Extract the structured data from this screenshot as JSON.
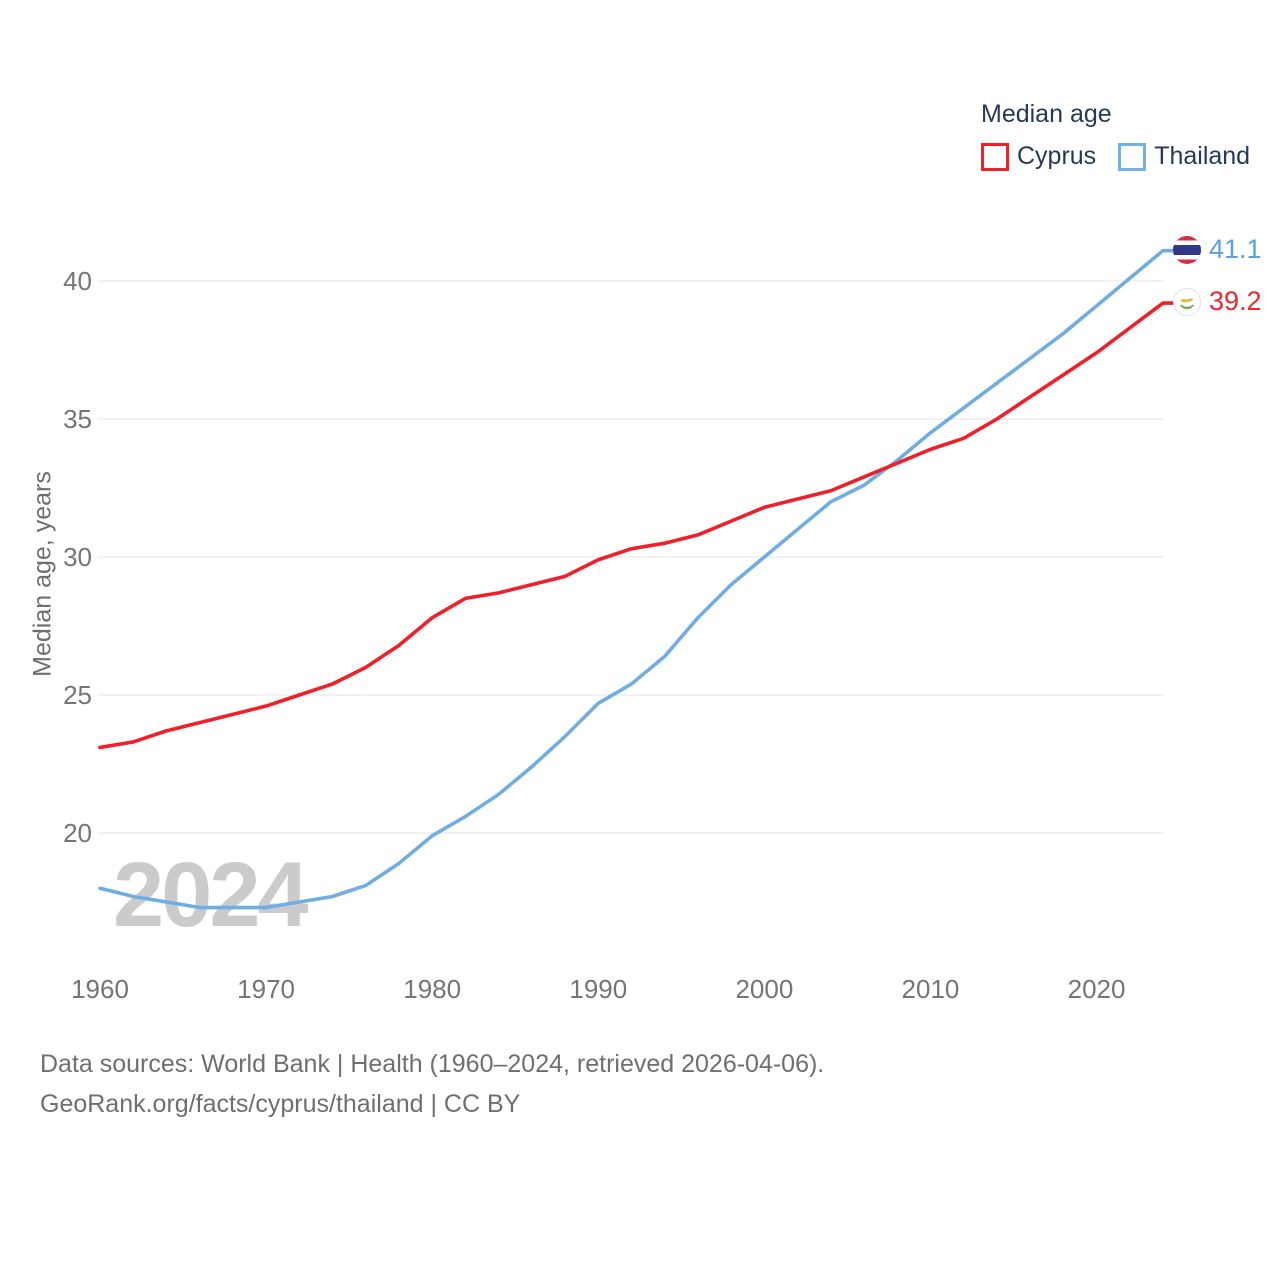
{
  "legend": {
    "title": "Median age",
    "items": [
      {
        "label": "Cyprus",
        "color": "#ef2028"
      },
      {
        "label": "Thailand",
        "color": "#74b1e7"
      }
    ]
  },
  "watermark": "2024",
  "footer": {
    "line1": "Data sources: World Bank | Health (1960–2024, retrieved 2026-04-06).",
    "line2": "GeoRank.org/facts/cyprus/thailand | CC BY"
  },
  "chart_data": {
    "type": "line",
    "title": "Median age",
    "ylabel": "Median age, years",
    "xlabel": "",
    "x": [
      1960,
      1962,
      1964,
      1966,
      1968,
      1970,
      1972,
      1974,
      1976,
      1978,
      1980,
      1982,
      1984,
      1986,
      1988,
      1990,
      1992,
      1994,
      1996,
      1998,
      2000,
      2002,
      2004,
      2006,
      2008,
      2010,
      2012,
      2014,
      2016,
      2018,
      2020,
      2022,
      2024
    ],
    "series": [
      {
        "name": "Cyprus",
        "color": "#ef2028",
        "end_label": "39.2",
        "flag": "cyprus-flag",
        "values": [
          23.1,
          23.3,
          23.7,
          24.0,
          24.3,
          24.6,
          25.0,
          25.4,
          26.0,
          26.8,
          27.8,
          28.5,
          28.7,
          29.0,
          29.3,
          29.9,
          30.3,
          30.5,
          30.8,
          31.3,
          31.8,
          32.1,
          32.4,
          32.9,
          33.4,
          33.9,
          34.3,
          35.0,
          35.8,
          36.6,
          37.4,
          38.3,
          39.2
        ]
      },
      {
        "name": "Thailand",
        "color": "#70ade5",
        "end_label": "41.1",
        "flag": "thailand-flag",
        "values": [
          18.0,
          17.7,
          17.5,
          17.3,
          17.3,
          17.3,
          17.5,
          17.7,
          18.1,
          18.9,
          19.9,
          20.6,
          21.4,
          22.4,
          23.5,
          24.7,
          25.4,
          26.4,
          27.8,
          29.0,
          30.0,
          31.0,
          32.0,
          32.6,
          33.5,
          34.5,
          35.4,
          36.3,
          37.2,
          38.1,
          39.1,
          40.1,
          41.1
        ]
      }
    ],
    "y_ticks": [
      20,
      25,
      30,
      35,
      40
    ],
    "x_ticks": [
      1960,
      1970,
      1980,
      1990,
      2000,
      2010,
      2020
    ],
    "ylim": [
      16.5,
      43.0
    ],
    "xlim": [
      1960,
      2024
    ],
    "grid": "horizontal",
    "legend_position": "top-right"
  }
}
